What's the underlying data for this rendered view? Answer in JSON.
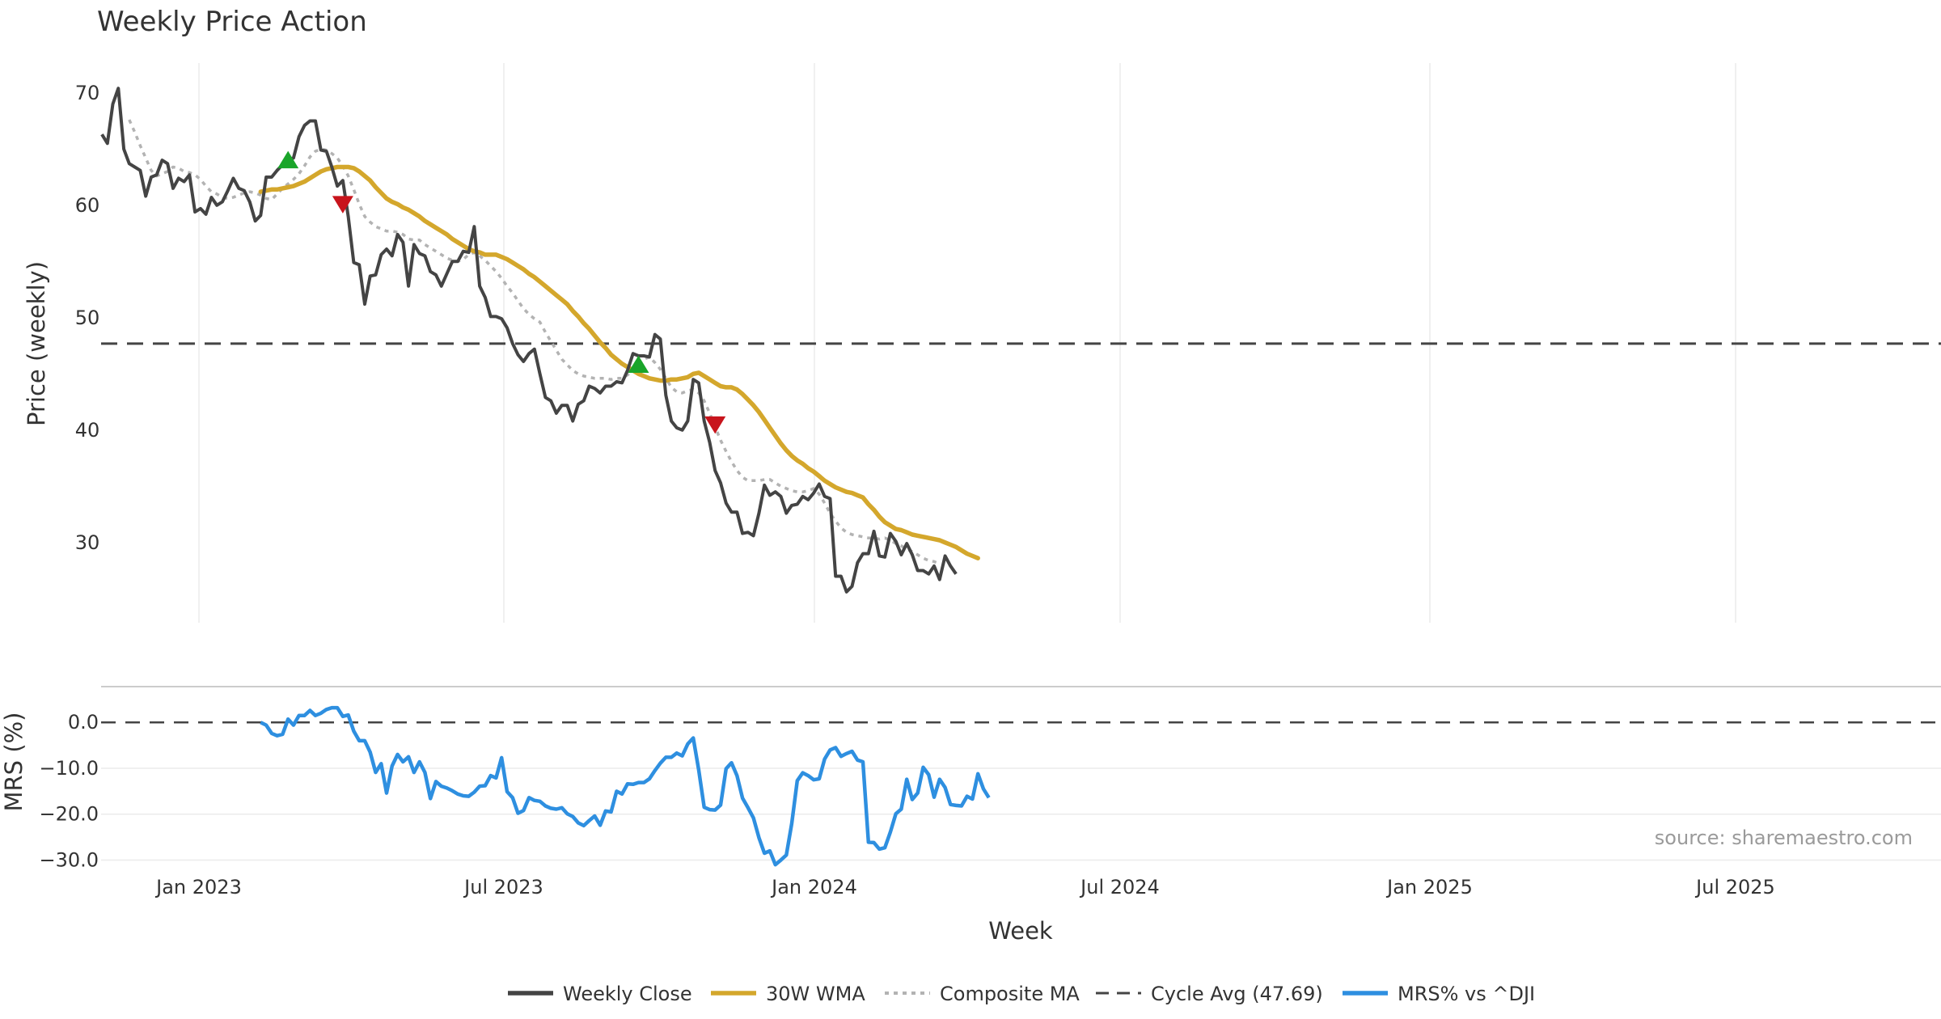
{
  "chart_data": [
    {
      "type": "line",
      "title": "Weekly Price Action",
      "xlabel": "",
      "ylabel": "Price (weekly)",
      "ylim": [
        22.5,
        72.5
      ],
      "yticks": [
        30,
        40,
        50,
        60,
        70
      ],
      "xticks": [
        "Jan 2023",
        "Jul 2023",
        "Jan 2024",
        "Jul 2024",
        "Jan 2025",
        "Jul 2025"
      ],
      "grid": "vertical",
      "series": [
        {
          "name": "Weekly Close",
          "color": "#444444",
          "values": [
            66.3,
            65.5,
            69.0,
            70.4,
            65.0,
            63.7,
            63.4,
            63.1,
            60.8,
            62.5,
            62.7,
            64.0,
            63.7,
            61.5,
            62.4,
            62.1,
            62.7,
            59.4,
            59.7,
            59.2,
            60.7,
            60.0,
            60.3,
            61.3,
            62.4,
            61.5,
            61.3,
            60.3,
            58.6,
            59.1,
            62.5,
            62.5,
            63.1,
            63.6,
            64.1,
            64.2,
            66.1,
            67.1,
            67.5,
            67.5,
            64.9,
            64.8,
            63.4,
            61.7,
            62.2,
            59.0,
            54.9,
            54.7,
            51.2,
            53.7,
            53.8,
            55.6,
            56.1,
            55.5,
            57.4,
            56.7,
            52.8,
            56.5,
            55.7,
            55.5,
            54.1,
            53.8,
            52.8,
            53.9,
            55.0,
            55.0,
            55.9,
            55.8,
            58.1,
            52.8,
            51.8,
            50.1,
            50.1,
            49.9,
            49.1,
            47.7,
            46.7,
            46.1,
            46.8,
            47.2,
            45.0,
            42.9,
            42.6,
            41.5,
            42.2,
            42.2,
            40.8,
            42.3,
            42.6,
            43.9,
            43.7,
            43.3,
            43.9,
            43.9,
            44.3,
            44.2,
            45.3,
            46.8,
            46.6,
            46.6,
            46.5,
            48.5,
            48.1,
            43.1,
            40.8,
            40.2,
            40.0,
            40.8,
            44.5,
            44.2,
            40.8,
            38.9,
            36.4,
            35.3,
            33.5,
            32.7,
            32.7,
            30.8,
            30.9,
            30.6,
            32.6,
            35.1,
            34.2,
            34.5,
            34.1,
            32.6,
            33.3,
            33.4,
            34.1,
            33.8,
            34.4,
            35.2,
            34.1,
            33.9,
            27.0,
            27.0,
            25.6,
            26.1,
            28.2,
            29.0,
            29.0,
            31.0,
            28.8,
            28.7,
            30.8,
            30.1,
            28.9,
            29.9,
            28.9,
            27.5,
            27.5,
            27.2,
            27.9,
            26.7,
            28.8,
            27.9,
            27.2
          ]
        },
        {
          "name": "30W WMA",
          "color": "#d4a72c",
          "start_index": 29,
          "values": [
            61.2,
            61.3,
            61.4,
            61.4,
            61.5,
            61.6,
            61.7,
            61.9,
            62.1,
            62.4,
            62.7,
            63.0,
            63.2,
            63.3,
            63.4,
            63.4,
            63.4,
            63.3,
            63.0,
            62.6,
            62.2,
            61.6,
            61.1,
            60.6,
            60.3,
            60.1,
            59.8,
            59.6,
            59.3,
            59.0,
            58.6,
            58.3,
            58.0,
            57.7,
            57.4,
            57.0,
            56.7,
            56.4,
            56.1,
            55.9,
            55.8,
            55.6,
            55.6,
            55.6,
            55.4,
            55.2,
            54.9,
            54.6,
            54.3,
            53.9,
            53.6,
            53.2,
            52.8,
            52.4,
            52.0,
            51.6,
            51.2,
            50.6,
            50.1,
            49.5,
            49.0,
            48.4,
            47.8,
            47.3,
            46.7,
            46.3,
            45.9,
            45.6,
            45.3,
            45.0,
            44.8,
            44.6,
            44.5,
            44.4,
            44.4,
            44.5,
            44.5,
            44.6,
            44.7,
            45.0,
            45.1,
            44.8,
            44.5,
            44.2,
            43.9,
            43.8,
            43.8,
            43.6,
            43.2,
            42.7,
            42.2,
            41.6,
            40.9,
            40.2,
            39.5,
            38.8,
            38.2,
            37.7,
            37.3,
            37.0,
            36.6,
            36.3,
            35.9,
            35.5,
            35.2,
            34.9,
            34.7,
            34.5,
            34.4,
            34.2,
            34.0,
            33.4,
            32.9,
            32.3,
            31.8,
            31.5,
            31.2,
            31.1,
            30.9,
            30.7,
            30.6,
            30.5,
            30.4,
            30.3,
            30.2,
            30.0,
            29.8,
            29.6,
            29.3,
            29.0,
            28.8,
            28.6
          ]
        },
        {
          "name": "Composite MA",
          "color": "#b3b3b3",
          "start_index": 5,
          "values": [
            67.6,
            66.5,
            65.3,
            64.2,
            63.1,
            62.6,
            62.8,
            63.0,
            63.4,
            63.3,
            63.0,
            62.9,
            62.7,
            62.3,
            61.7,
            61.2,
            61.0,
            60.7,
            60.6,
            60.7,
            60.9,
            61.1,
            61.2,
            61.1,
            60.9,
            60.6,
            60.5,
            61.0,
            61.5,
            61.9,
            62.3,
            62.8,
            63.5,
            64.3,
            64.8,
            65.0,
            64.9,
            64.6,
            64.2,
            63.5,
            62.6,
            61.4,
            60.1,
            59.0,
            58.5,
            58.1,
            57.9,
            57.7,
            57.7,
            57.6,
            57.4,
            57.0,
            56.9,
            56.9,
            56.5,
            56.2,
            55.9,
            55.6,
            55.3,
            55.1,
            55.0,
            55.2,
            55.6,
            55.8,
            55.5,
            55.1,
            54.6,
            54.1,
            53.5,
            52.8,
            52.2,
            51.5,
            50.8,
            50.3,
            49.9,
            49.6,
            48.7,
            47.9,
            47.1,
            46.3,
            45.8,
            45.3,
            45.0,
            44.8,
            44.7,
            44.6,
            44.6,
            44.6,
            44.5,
            44.6,
            44.6,
            44.9,
            45.3,
            45.8,
            46.3,
            46.5,
            46.0,
            45.4,
            44.6,
            43.8,
            43.4,
            43.3,
            43.5,
            43.6,
            43.3,
            42.6,
            41.5,
            40.3,
            39.1,
            38.1,
            37.2,
            36.4,
            35.8,
            35.5,
            35.5,
            35.5,
            35.6,
            35.6,
            35.3,
            35.0,
            34.8,
            34.6,
            34.5,
            34.5,
            34.6,
            34.8,
            34.3,
            33.5,
            32.6,
            31.9,
            31.3,
            30.9,
            30.7,
            30.6,
            30.5,
            30.4,
            30.4,
            30.3,
            30.4,
            30.2,
            29.9,
            29.7,
            29.4,
            29.2,
            28.9,
            28.6,
            28.4,
            28.3,
            28.1
          ]
        },
        {
          "name": "Cycle Avg (47.69)",
          "color": "#444444",
          "value": 47.69
        }
      ],
      "annotations": [
        {
          "type": "buy",
          "index": 34,
          "value": 63.8
        },
        {
          "type": "sell",
          "index": 44,
          "value": 60.3
        },
        {
          "type": "buy",
          "index": 98,
          "value": 45.6
        },
        {
          "type": "sell",
          "index": 112,
          "value": 40.7
        }
      ]
    },
    {
      "type": "line",
      "title": "",
      "xlabel": "Week",
      "ylabel": "MRS (%)",
      "ylim": [
        -31.5,
        5.5
      ],
      "yticks": [
        "0.0",
        "−10.0",
        "−20.0",
        "−30.0"
      ],
      "xticks": [
        "Jan 2023",
        "Jul 2023",
        "Jan 2024",
        "Jul 2024",
        "Jan 2025",
        "Jul 2025"
      ],
      "series": [
        {
          "name": "MRS% vs ^DJI",
          "color": "#2e8fe0",
          "start_index": 29,
          "values": [
            0.0,
            -0.6,
            -2.4,
            -2.9,
            -2.6,
            0.7,
            -0.6,
            1.5,
            1.5,
            2.6,
            1.5,
            2.0,
            2.8,
            3.2,
            3.2,
            1.3,
            1.6,
            -1.9,
            -4.0,
            -4.0,
            -6.5,
            -10.9,
            -9.0,
            -15.4,
            -9.5,
            -7.0,
            -8.6,
            -7.5,
            -10.9,
            -8.6,
            -10.9,
            -16.6,
            -12.9,
            -13.9,
            -14.3,
            -14.9,
            -15.6,
            -16.0,
            -16.1,
            -15.2,
            -13.9,
            -13.8,
            -11.6,
            -12.1,
            -7.7,
            -15.1,
            -16.4,
            -19.8,
            -19.2,
            -16.4,
            -17.0,
            -17.2,
            -18.2,
            -18.7,
            -18.9,
            -18.6,
            -19.9,
            -20.5,
            -21.9,
            -22.5,
            -21.4,
            -20.4,
            -22.4,
            -19.3,
            -19.5,
            -15.0,
            -15.6,
            -13.4,
            -13.5,
            -13.1,
            -13.1,
            -12.3,
            -10.5,
            -8.9,
            -7.6,
            -7.6,
            -6.7,
            -7.3,
            -4.7,
            -3.4,
            -10.3,
            -18.5,
            -19.0,
            -19.1,
            -18.0,
            -10.1,
            -8.8,
            -11.6,
            -16.5,
            -18.6,
            -20.8,
            -25.1,
            -28.5,
            -28.0,
            -31.0,
            -30.0,
            -28.9,
            -22.0,
            -12.7,
            -11.0,
            -11.6,
            -12.5,
            -12.3,
            -8.0,
            -6.0,
            -5.5,
            -7.4,
            -6.8,
            -6.3,
            -8.2,
            -8.6,
            -26.1,
            -26.2,
            -27.6,
            -27.3,
            -23.9,
            -19.9,
            -18.9,
            -12.4,
            -16.8,
            -15.4,
            -9.8,
            -11.4,
            -16.3,
            -12.4,
            -14.2,
            -17.9,
            -18.1,
            -18.2,
            -16.1,
            -16.7,
            -11.2,
            -14.5,
            -16.4
          ]
        },
        {
          "name": "zero-line",
          "color": "#444444",
          "value": 0
        }
      ]
    }
  ],
  "legend": {
    "placement": "bottom-center",
    "entries": [
      {
        "label": "Weekly Close",
        "color": "#444444",
        "style": "solid"
      },
      {
        "label": "30W WMA",
        "color": "#d4a72c",
        "style": "solid"
      },
      {
        "label": "Composite MA",
        "color": "#b3b3b3",
        "style": "dotted"
      },
      {
        "label": "Cycle Avg (47.69)",
        "color": "#444444",
        "style": "dashed"
      },
      {
        "label": "MRS% vs ^DJI",
        "color": "#2e8fe0",
        "style": "solid"
      }
    ]
  },
  "watermark": "source: sharemaestro.com",
  "colors": {
    "buy": "#1aa52a",
    "sell": "#c8141c",
    "grid": "#ebebeb",
    "divider": "#cccccc"
  }
}
